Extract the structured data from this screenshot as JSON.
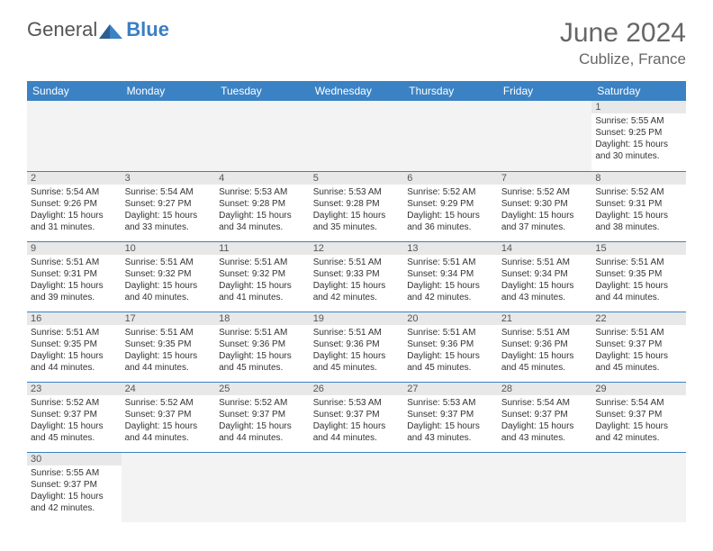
{
  "brand": {
    "part1": "General",
    "part2": "Blue"
  },
  "title": "June 2024",
  "location": "Cublize, France",
  "colors": {
    "header_bg": "#3b82c4",
    "header_text": "#ffffff",
    "daynum_bg": "#e8e8e8",
    "border": "#3b82c4",
    "text": "#333333",
    "title_color": "#666666"
  },
  "weekdays": [
    "Sunday",
    "Monday",
    "Tuesday",
    "Wednesday",
    "Thursday",
    "Friday",
    "Saturday"
  ],
  "weeks": [
    [
      {
        "day": "",
        "lines": [
          "",
          "",
          "",
          ""
        ]
      },
      {
        "day": "",
        "lines": [
          "",
          "",
          "",
          ""
        ]
      },
      {
        "day": "",
        "lines": [
          "",
          "",
          "",
          ""
        ]
      },
      {
        "day": "",
        "lines": [
          "",
          "",
          "",
          ""
        ]
      },
      {
        "day": "",
        "lines": [
          "",
          "",
          "",
          ""
        ]
      },
      {
        "day": "",
        "lines": [
          "",
          "",
          "",
          ""
        ]
      },
      {
        "day": "1",
        "lines": [
          "Sunrise: 5:55 AM",
          "Sunset: 9:25 PM",
          "Daylight: 15 hours",
          "and 30 minutes."
        ]
      }
    ],
    [
      {
        "day": "2",
        "lines": [
          "Sunrise: 5:54 AM",
          "Sunset: 9:26 PM",
          "Daylight: 15 hours",
          "and 31 minutes."
        ]
      },
      {
        "day": "3",
        "lines": [
          "Sunrise: 5:54 AM",
          "Sunset: 9:27 PM",
          "Daylight: 15 hours",
          "and 33 minutes."
        ]
      },
      {
        "day": "4",
        "lines": [
          "Sunrise: 5:53 AM",
          "Sunset: 9:28 PM",
          "Daylight: 15 hours",
          "and 34 minutes."
        ]
      },
      {
        "day": "5",
        "lines": [
          "Sunrise: 5:53 AM",
          "Sunset: 9:28 PM",
          "Daylight: 15 hours",
          "and 35 minutes."
        ]
      },
      {
        "day": "6",
        "lines": [
          "Sunrise: 5:52 AM",
          "Sunset: 9:29 PM",
          "Daylight: 15 hours",
          "and 36 minutes."
        ]
      },
      {
        "day": "7",
        "lines": [
          "Sunrise: 5:52 AM",
          "Sunset: 9:30 PM",
          "Daylight: 15 hours",
          "and 37 minutes."
        ]
      },
      {
        "day": "8",
        "lines": [
          "Sunrise: 5:52 AM",
          "Sunset: 9:31 PM",
          "Daylight: 15 hours",
          "and 38 minutes."
        ]
      }
    ],
    [
      {
        "day": "9",
        "lines": [
          "Sunrise: 5:51 AM",
          "Sunset: 9:31 PM",
          "Daylight: 15 hours",
          "and 39 minutes."
        ]
      },
      {
        "day": "10",
        "lines": [
          "Sunrise: 5:51 AM",
          "Sunset: 9:32 PM",
          "Daylight: 15 hours",
          "and 40 minutes."
        ]
      },
      {
        "day": "11",
        "lines": [
          "Sunrise: 5:51 AM",
          "Sunset: 9:32 PM",
          "Daylight: 15 hours",
          "and 41 minutes."
        ]
      },
      {
        "day": "12",
        "lines": [
          "Sunrise: 5:51 AM",
          "Sunset: 9:33 PM",
          "Daylight: 15 hours",
          "and 42 minutes."
        ]
      },
      {
        "day": "13",
        "lines": [
          "Sunrise: 5:51 AM",
          "Sunset: 9:34 PM",
          "Daylight: 15 hours",
          "and 42 minutes."
        ]
      },
      {
        "day": "14",
        "lines": [
          "Sunrise: 5:51 AM",
          "Sunset: 9:34 PM",
          "Daylight: 15 hours",
          "and 43 minutes."
        ]
      },
      {
        "day": "15",
        "lines": [
          "Sunrise: 5:51 AM",
          "Sunset: 9:35 PM",
          "Daylight: 15 hours",
          "and 44 minutes."
        ]
      }
    ],
    [
      {
        "day": "16",
        "lines": [
          "Sunrise: 5:51 AM",
          "Sunset: 9:35 PM",
          "Daylight: 15 hours",
          "and 44 minutes."
        ]
      },
      {
        "day": "17",
        "lines": [
          "Sunrise: 5:51 AM",
          "Sunset: 9:35 PM",
          "Daylight: 15 hours",
          "and 44 minutes."
        ]
      },
      {
        "day": "18",
        "lines": [
          "Sunrise: 5:51 AM",
          "Sunset: 9:36 PM",
          "Daylight: 15 hours",
          "and 45 minutes."
        ]
      },
      {
        "day": "19",
        "lines": [
          "Sunrise: 5:51 AM",
          "Sunset: 9:36 PM",
          "Daylight: 15 hours",
          "and 45 minutes."
        ]
      },
      {
        "day": "20",
        "lines": [
          "Sunrise: 5:51 AM",
          "Sunset: 9:36 PM",
          "Daylight: 15 hours",
          "and 45 minutes."
        ]
      },
      {
        "day": "21",
        "lines": [
          "Sunrise: 5:51 AM",
          "Sunset: 9:36 PM",
          "Daylight: 15 hours",
          "and 45 minutes."
        ]
      },
      {
        "day": "22",
        "lines": [
          "Sunrise: 5:51 AM",
          "Sunset: 9:37 PM",
          "Daylight: 15 hours",
          "and 45 minutes."
        ]
      }
    ],
    [
      {
        "day": "23",
        "lines": [
          "Sunrise: 5:52 AM",
          "Sunset: 9:37 PM",
          "Daylight: 15 hours",
          "and 45 minutes."
        ]
      },
      {
        "day": "24",
        "lines": [
          "Sunrise: 5:52 AM",
          "Sunset: 9:37 PM",
          "Daylight: 15 hours",
          "and 44 minutes."
        ]
      },
      {
        "day": "25",
        "lines": [
          "Sunrise: 5:52 AM",
          "Sunset: 9:37 PM",
          "Daylight: 15 hours",
          "and 44 minutes."
        ]
      },
      {
        "day": "26",
        "lines": [
          "Sunrise: 5:53 AM",
          "Sunset: 9:37 PM",
          "Daylight: 15 hours",
          "and 44 minutes."
        ]
      },
      {
        "day": "27",
        "lines": [
          "Sunrise: 5:53 AM",
          "Sunset: 9:37 PM",
          "Daylight: 15 hours",
          "and 43 minutes."
        ]
      },
      {
        "day": "28",
        "lines": [
          "Sunrise: 5:54 AM",
          "Sunset: 9:37 PM",
          "Daylight: 15 hours",
          "and 43 minutes."
        ]
      },
      {
        "day": "29",
        "lines": [
          "Sunrise: 5:54 AM",
          "Sunset: 9:37 PM",
          "Daylight: 15 hours",
          "and 42 minutes."
        ]
      }
    ],
    [
      {
        "day": "30",
        "lines": [
          "Sunrise: 5:55 AM",
          "Sunset: 9:37 PM",
          "Daylight: 15 hours",
          "and 42 minutes."
        ]
      },
      {
        "day": "",
        "lines": [
          "",
          "",
          "",
          ""
        ]
      },
      {
        "day": "",
        "lines": [
          "",
          "",
          "",
          ""
        ]
      },
      {
        "day": "",
        "lines": [
          "",
          "",
          "",
          ""
        ]
      },
      {
        "day": "",
        "lines": [
          "",
          "",
          "",
          ""
        ]
      },
      {
        "day": "",
        "lines": [
          "",
          "",
          "",
          ""
        ]
      },
      {
        "day": "",
        "lines": [
          "",
          "",
          "",
          ""
        ]
      }
    ]
  ]
}
